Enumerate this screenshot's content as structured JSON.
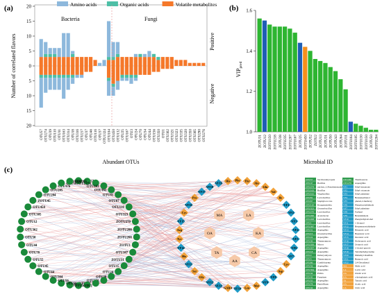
{
  "panels": {
    "a": "(a)",
    "b": "(b)",
    "c": "(c)"
  },
  "chart_data": [
    {
      "panel": "a",
      "type": "bar",
      "legend": [
        {
          "name": "Amino acids",
          "color": "#8db8dc"
        },
        {
          "name": "Organic acids",
          "color": "#4dbfa6"
        },
        {
          "name": "Volatile metabolites",
          "color": "#f5782a"
        }
      ],
      "groups": [
        "Bacteria",
        "Fungi"
      ],
      "side_labels": {
        "top": "Positive",
        "bottom": "Negative"
      },
      "ylabel": "Number of correlated flavors",
      "xlabel": "Abundant OTUs",
      "ylim": [
        -20,
        20
      ],
      "yticks": [
        20,
        15,
        10,
        5,
        0,
        5,
        10,
        15,
        20
      ],
      "categories": [
        "OTU57",
        "OTU274",
        "OTU39",
        "OTU110",
        "OTU11",
        "OTU163",
        "OTU314",
        "OTU18",
        "OTU316",
        "OTU217",
        "OTU37",
        "OTU46",
        "OTU116",
        "OTU37",
        "OTU1324",
        "OTU104",
        "OTU450",
        "OTU132",
        "OTU25",
        "OTU167",
        "OTU3",
        "OTU24",
        "OTU70",
        "OTU34",
        "OTU44",
        "OTU156",
        "OTU350",
        "OTU1",
        "OTU362",
        "OTU321",
        "OTU323",
        "OTU335",
        "OTU320",
        "OTU350",
        "OTU365",
        "OTU290",
        "OTU276"
      ],
      "split_after": 15,
      "positive": {
        "amino": [
          6,
          4,
          2,
          2,
          3,
          8,
          8,
          1,
          0,
          0,
          0,
          0,
          0,
          1,
          2,
          12,
          5,
          4,
          0,
          0,
          0,
          1,
          0,
          1,
          2,
          0,
          0,
          0,
          0,
          0,
          0,
          0,
          0,
          0,
          0,
          0,
          0
        ],
        "organic": [
          0,
          1,
          1,
          1,
          0,
          0,
          0,
          1,
          0,
          0,
          0,
          0,
          0,
          0,
          0,
          1,
          1,
          1,
          0,
          0,
          0,
          0,
          1,
          0,
          0,
          1,
          1,
          0,
          0,
          0,
          0,
          0,
          0,
          0,
          0,
          0,
          0
        ],
        "volatile": [
          3,
          3,
          3,
          3,
          3,
          3,
          3,
          3,
          3,
          3,
          3,
          3,
          2,
          0,
          0,
          2,
          2,
          3,
          3,
          3,
          3,
          3,
          3,
          3,
          3,
          3,
          2,
          3,
          3,
          3,
          2,
          2,
          2,
          1,
          1,
          1,
          1
        ]
      },
      "negative": {
        "amino": [
          10,
          5,
          4,
          4,
          4,
          7,
          4,
          2,
          1,
          1,
          0,
          0,
          0,
          0,
          0,
          5,
          3,
          3,
          1,
          1,
          2,
          1,
          0,
          0,
          0,
          0,
          0,
          0,
          0,
          0,
          0,
          0,
          0,
          0,
          0,
          0,
          0
        ],
        "organic": [
          1,
          1,
          1,
          1,
          1,
          1,
          1,
          1,
          0,
          0,
          0,
          0,
          0,
          0,
          0,
          1,
          1,
          0,
          1,
          1,
          1,
          1,
          0,
          0,
          0,
          0,
          0,
          0,
          0,
          0,
          0,
          0,
          0,
          0,
          0,
          0,
          0
        ],
        "volatile": [
          3,
          3,
          3,
          3,
          3,
          3,
          3,
          3,
          3,
          3,
          2,
          2,
          0,
          0,
          0,
          4,
          6,
          5,
          3,
          3,
          3,
          3,
          3,
          3,
          3,
          2,
          2,
          1,
          1,
          1,
          0,
          0,
          0,
          0,
          0,
          0,
          0
        ]
      }
    },
    {
      "panel": "b",
      "type": "bar",
      "ylabel": "VIP",
      "ylabel_sub": "pred",
      "xlabel": "Microbial ID",
      "ylim": [
        1.0,
        1.6
      ],
      "yticks": [
        1.0,
        1.2,
        1.4,
        1.6
      ],
      "colors": {
        "bacteria": "#2db531",
        "fungi": "#1f5fb5",
        "orange": "#f5901c"
      },
      "categories": [
        "ZOTU31",
        "ZOTU12",
        "ZOTU150",
        "ZOTU218",
        "ZOTU38",
        "ZOTU235",
        "ZOTU207",
        "ZOTU167",
        "ZOTU25",
        "ZOTU450",
        "ZOTU52",
        "ZOTU2",
        "ZOTU13",
        "ZOTU31",
        "ZOTU50",
        "ZOTU43",
        "ZOTU64",
        "ZOTU11",
        "ZOTU164",
        "ZOTU105",
        "ZOTU130",
        "ZOTU150",
        "ZOTU50",
        "ZOTU204"
      ],
      "values": [
        1.56,
        1.55,
        1.53,
        1.52,
        1.52,
        1.52,
        1.51,
        1.49,
        1.44,
        1.42,
        1.4,
        1.36,
        1.35,
        1.34,
        1.32,
        1.3,
        1.26,
        1.21,
        1.05,
        1.04,
        1.03,
        1.02,
        1.01,
        1.01
      ],
      "bar_colors": [
        "green",
        "blue",
        "green",
        "green",
        "green",
        "green",
        "green",
        "green",
        "blue",
        "orange",
        "green",
        "green",
        "green",
        "green",
        "green",
        "green",
        "green",
        "green",
        "blue",
        "green",
        "green",
        "green",
        "green",
        "green"
      ]
    }
  ],
  "network": {
    "otus": [
      "OTU57",
      "OTU47",
      "OTU274",
      "OTU163",
      "OTU161",
      "OTU81",
      "OTU67",
      "OTU110",
      "OTU323",
      "ZOTU270",
      "ZOTU200",
      "ZOTU208",
      "ZOTU1",
      "OTU387",
      "ZOTU31",
      "OTU15",
      "OTU24",
      "OTU30",
      "OTU350",
      "OTU357",
      "OTU18",
      "OTU2",
      "OTU5",
      "OTU60",
      "OTU56",
      "OTU364",
      "OTU44",
      "OTU45",
      "OTU55",
      "OTU78",
      "OTU44",
      "OTU50",
      "OTU362",
      "OTU12",
      "OTU305",
      "OTU450",
      "ZOTU45",
      "OTU204",
      "OTU205",
      "OTU176",
      "OTU167",
      "OTU165"
    ],
    "flavors": [
      "Phe",
      "Thr",
      "Ala",
      "Glu",
      "Val",
      "Ile",
      "VF1",
      "VF2",
      "VF3",
      "VF4",
      "VF5",
      "VF6",
      "VF7",
      "Lys",
      "Asp",
      "VF8",
      "VF9",
      "Met",
      "Leu",
      "VF10",
      "GABA",
      "VF11",
      "VF12",
      "Gly",
      "Ser",
      "VF13",
      "His",
      "VF14",
      "Tyr",
      "Arg",
      "VF15",
      "Cys",
      "VF16",
      "Pro",
      "VF17",
      "VF18",
      "VF19",
      "His"
    ],
    "inner": [
      "MA",
      "LA",
      "OA",
      "KA",
      "TA",
      "AA",
      "CA"
    ],
    "legend_left": [
      "OTU57  Saccharomycopsis",
      "OTU47  Bacillus",
      "OTU274 unclass_f_Pseudomonadales",
      "OTU163 Bacillus",
      "OTU161 Virgibacillus",
      "OTU81  Lactobacillus",
      "OTU67  Staphylococcus",
      "OTU110 Kroppenstedtia",
      "OTU323 Oceanobacillus",
      "OTU270 Lactobacillus",
      "OTU200 Acetobacter",
      "OTU208 Lactobacillus",
      "OTU1   Lactobacillus",
      "OTU387 Lactobacillus",
      "OTU31  Aspergillus",
      "OTU15  Oceanobacillus",
      "OTU24  Aspergillus",
      "OTU30  Thermomyces",
      "OTU350 Mucor",
      "OTU357 Aspergillus",
      "OTU18  Aspergillus",
      "OTU2   Debaryomyces",
      "OTU5   Thermomyces",
      "OTU60  Candidozyma",
      "OTU56  Aspergillus",
      "OTU364 Aspergillus",
      "OTU44  Pichia",
      "OTU45  Fusarium",
      "OTU55  Aspergillus",
      "OTU78  Penicillium",
      "OTU44  Aspergillus"
    ],
    "legend_right": [
      "OTU290 Thermoascus",
      "OTU276 Aspergillus",
      "VF1  Ethyl hexanoate",
      "VF2  Ethyl octanoate",
      "VF3  Ethyl palmitate",
      "VF4  Benzeneethanol",
      "VF5  phenol,2-methoxy",
      "VF6  Phenylacetaldehyde",
      "VF7  Ethyl palmitate",
      "VF8  Furfural",
      "VF9  Benzaldehyde",
      "VF10 Phenylethylalcohol",
      "VF11 1-Octanol",
      "VF12 Benzeneacetaldehyde",
      "VF13 Hexanoic acid",
      "VF14 Heptanoic acid",
      "VF15 Decanoic acid",
      "VF16 Dodecanoic acid",
      "VF17 Octanoic acid",
      "VF18 2-Acetyl pyrrole",
      "VF19 Tetramethylpyrazine",
      "VF20 Dimethyl disulfide",
      "VF21 Butanoic acid",
      "VF22 2,4-Decadienal",
      "MA  Malic acid",
      "LA  Lactic acid",
      "OA  Oxalic acid",
      "KA  a-ketoglutaric acid",
      "TA  Tartaric acid",
      "AA  Acetic acid",
      "CA  Citric acid"
    ]
  }
}
